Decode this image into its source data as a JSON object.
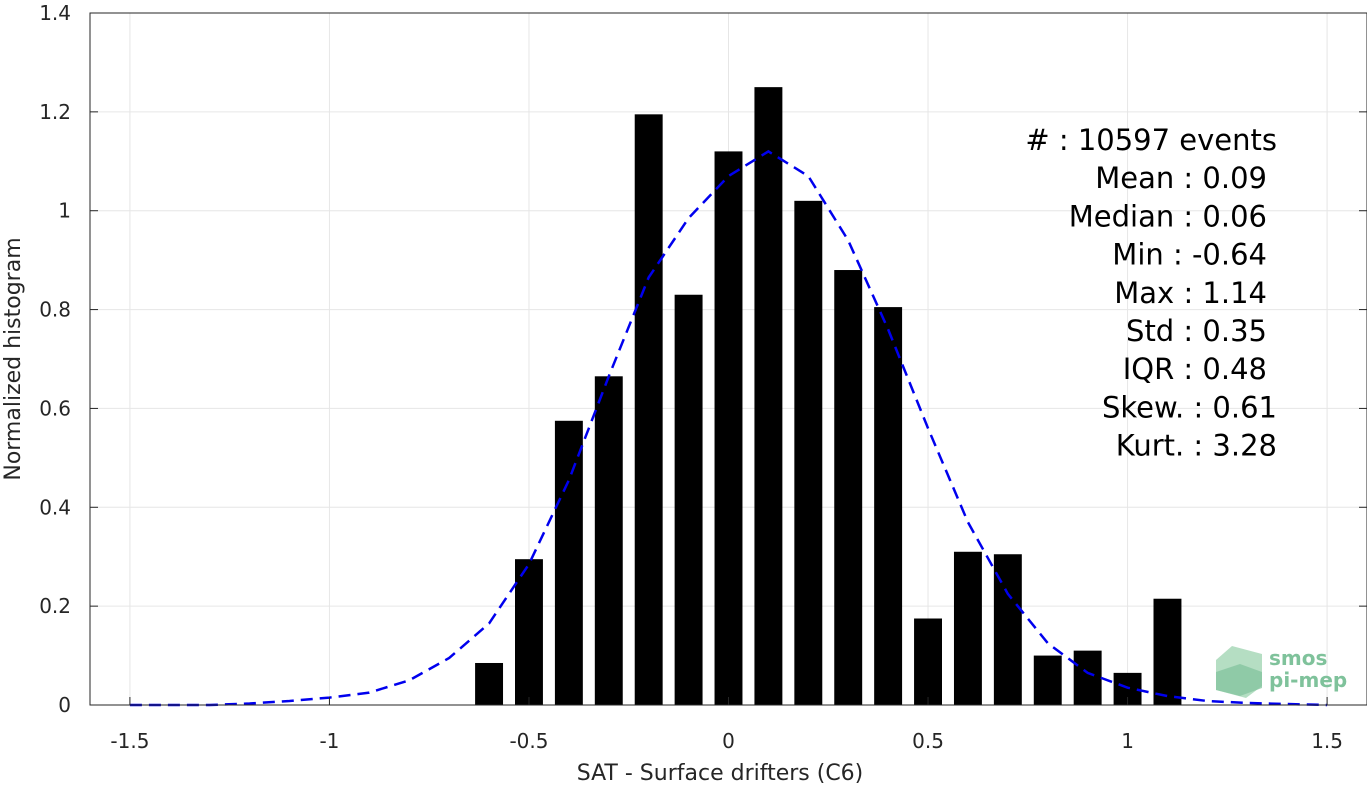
{
  "chart_data": {
    "type": "bar",
    "xlabel": "SAT - Surface drifters (C6)",
    "ylabel": "Normalized histogram",
    "xlim": [
      -1.6,
      1.6
    ],
    "ylim": [
      0,
      1.4
    ],
    "xticks": [
      -1.5,
      -1,
      -0.5,
      0,
      0.5,
      1,
      1.5
    ],
    "xtick_labels": [
      "-1.5",
      "-1",
      "-0.5",
      "0",
      "0.5",
      "1",
      "1.5"
    ],
    "yticks": [
      0,
      0.2,
      0.4,
      0.6,
      0.8,
      1,
      1.2,
      1.4
    ],
    "ytick_labels": [
      "0",
      "0.2",
      "0.4",
      "0.6",
      "0.8",
      "1",
      "1.2",
      "1.4"
    ],
    "grid": true,
    "bar_color": "#000000",
    "bins": [
      -0.6,
      -0.5,
      -0.4,
      -0.3,
      -0.2,
      -0.1,
      0.0,
      0.1,
      0.2,
      0.3,
      0.4,
      0.5,
      0.6,
      0.7,
      0.8,
      0.9,
      1.0,
      1.1
    ],
    "values": [
      0.085,
      0.295,
      0.575,
      0.665,
      1.195,
      0.83,
      1.12,
      1.25,
      1.02,
      0.88,
      0.805,
      0.175,
      0.31,
      0.305,
      0.1,
      0.11,
      0.065,
      0.215
    ],
    "fit_curve": {
      "style": "dashed",
      "color": "#0000ee",
      "x": [
        -1.5,
        -1.4,
        -1.3,
        -1.2,
        -1.1,
        -1.0,
        -0.9,
        -0.8,
        -0.7,
        -0.6,
        -0.5,
        -0.4,
        -0.3,
        -0.2,
        -0.1,
        0.0,
        0.1,
        0.2,
        0.3,
        0.4,
        0.5,
        0.6,
        0.7,
        0.8,
        0.9,
        1.0,
        1.1,
        1.2,
        1.3,
        1.4,
        1.5
      ],
      "y": [
        0.0,
        0.0,
        0.0,
        0.003,
        0.008,
        0.015,
        0.025,
        0.05,
        0.095,
        0.165,
        0.285,
        0.455,
        0.665,
        0.865,
        0.985,
        1.07,
        1.12,
        1.07,
        0.94,
        0.76,
        0.56,
        0.37,
        0.225,
        0.125,
        0.065,
        0.035,
        0.018,
        0.008,
        0.004,
        0.002,
        0.0
      ]
    },
    "annotations": [
      "#  : 10597 events",
      "Mean : 0.09",
      "Median : 0.06",
      "Min : -0.64",
      "Max : 1.14",
      "Std : 0.35",
      "IQR : 0.48",
      "Skew. : 0.61",
      "Kurt. : 3.28"
    ]
  },
  "logo": {
    "line1": "smos",
    "line2": "pi-mep"
  }
}
